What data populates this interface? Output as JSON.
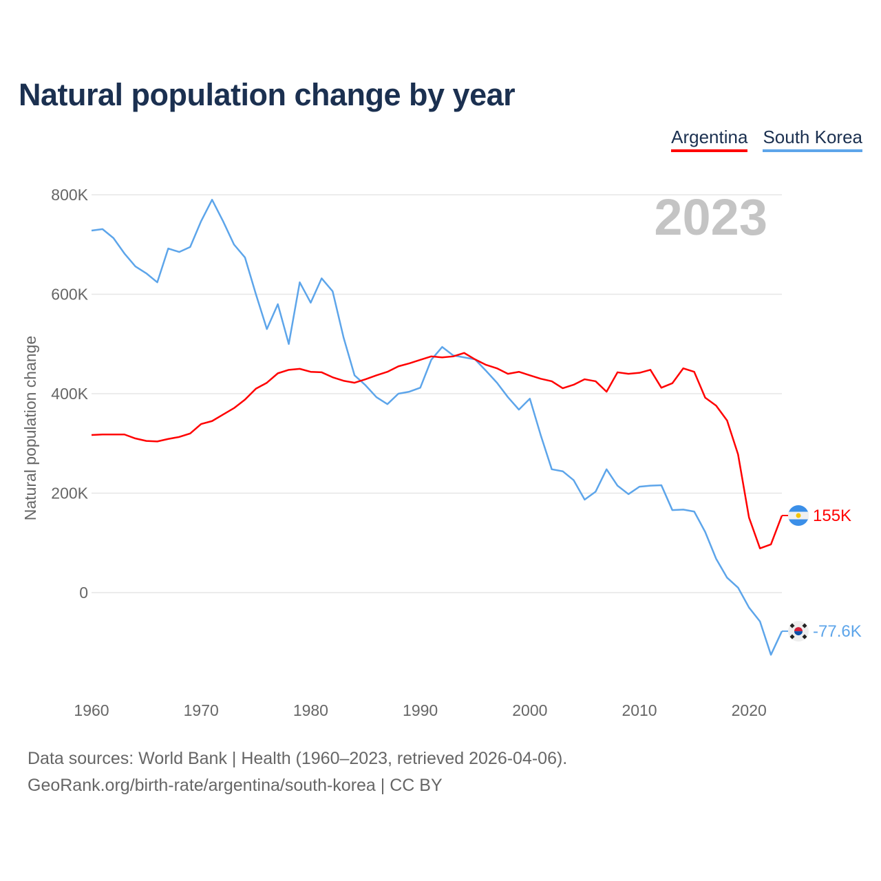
{
  "title": "Natural population change by year",
  "footer": {
    "line1": "Data sources: World Bank | Health (1960–2023, retrieved 2026-04-06).",
    "line2": "GeoRank.org/birth-rate/argentina/south-korea | CC BY"
  },
  "chart_data": {
    "type": "line",
    "title": "Natural population change by year",
    "xlabel": "",
    "ylabel": "Natural population change",
    "year_label": "2023",
    "xlim": [
      1960,
      2023
    ],
    "ylim": [
      -200000,
      800000
    ],
    "x_ticks": [
      1960,
      1970,
      1980,
      1990,
      2000,
      2010,
      2020
    ],
    "y_ticks": [
      0,
      200000,
      400000,
      600000,
      800000
    ],
    "y_tick_labels": [
      "0",
      "200K",
      "400K",
      "600K",
      "800K"
    ],
    "grid": true,
    "legend_position": "top-right",
    "x": [
      1960,
      1961,
      1962,
      1963,
      1964,
      1965,
      1966,
      1967,
      1968,
      1969,
      1970,
      1971,
      1972,
      1973,
      1974,
      1975,
      1976,
      1977,
      1978,
      1979,
      1980,
      1981,
      1982,
      1983,
      1984,
      1985,
      1986,
      1987,
      1988,
      1989,
      1990,
      1991,
      1992,
      1993,
      1994,
      1995,
      1996,
      1997,
      1998,
      1999,
      2000,
      2001,
      2002,
      2003,
      2004,
      2005,
      2006,
      2007,
      2008,
      2009,
      2010,
      2011,
      2012,
      2013,
      2014,
      2015,
      2016,
      2017,
      2018,
      2019,
      2020,
      2021,
      2022,
      2023
    ],
    "series": [
      {
        "name": "Argentina",
        "color": "#ff0000",
        "end_label": "155K",
        "flag": "argentina-flag",
        "values": [
          317000,
          318000,
          318000,
          318000,
          310000,
          305000,
          304000,
          309000,
          313000,
          320000,
          339000,
          345000,
          358000,
          371000,
          388000,
          410000,
          422000,
          441000,
          448000,
          450000,
          444000,
          443000,
          433000,
          426000,
          422000,
          429000,
          437000,
          444000,
          455000,
          461000,
          468000,
          475000,
          473000,
          475000,
          482000,
          469000,
          458000,
          451000,
          440000,
          444000,
          437000,
          430000,
          425000,
          411000,
          418000,
          429000,
          425000,
          404000,
          443000,
          440000,
          442000,
          448000,
          412000,
          421000,
          451000,
          444000,
          392000,
          376000,
          346000,
          278000,
          151000,
          89000,
          97000,
          155000
        ]
      },
      {
        "name": "South Korea",
        "color": "#5da5ea",
        "end_label": "-77.6K",
        "flag": "south-korea-flag",
        "values": [
          728000,
          731000,
          713000,
          682000,
          656000,
          642000,
          624000,
          692000,
          685000,
          695000,
          747000,
          790000,
          747000,
          700000,
          674000,
          600000,
          530000,
          580000,
          500000,
          624000,
          583000,
          632000,
          606000,
          513000,
          437000,
          417000,
          393000,
          379000,
          400000,
          404000,
          412000,
          468000,
          494000,
          477000,
          473000,
          469000,
          446000,
          422000,
          393000,
          368000,
          390000,
          316000,
          248000,
          244000,
          226000,
          187000,
          203000,
          248000,
          215000,
          198000,
          213000,
          215000,
          216000,
          166000,
          167000,
          163000,
          122000,
          68000,
          30000,
          10000,
          -30000,
          -58000,
          -125000,
          -77600
        ]
      }
    ]
  }
}
